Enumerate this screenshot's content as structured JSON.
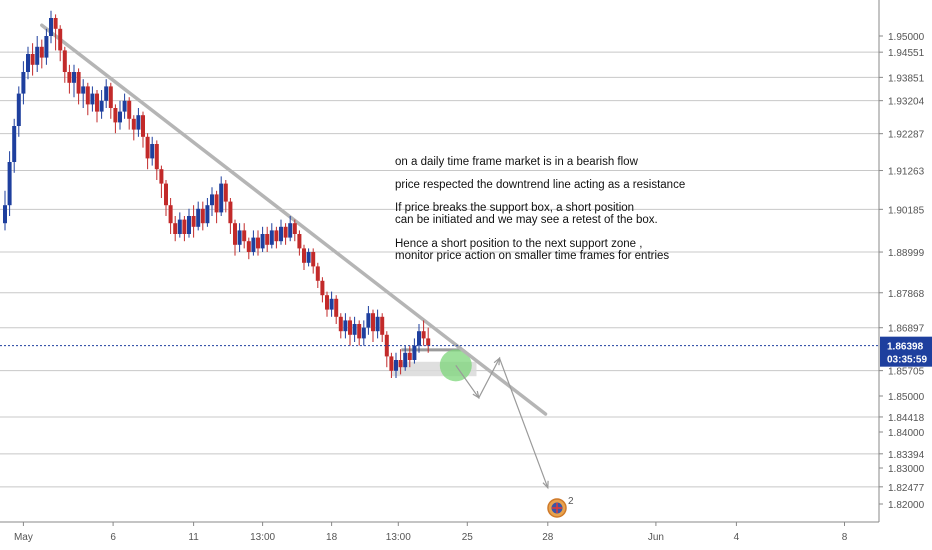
{
  "chart_data": {
    "type": "candlestick",
    "y_range": [
      1.815,
      1.96
    ],
    "x_range_days": [
      0,
      38
    ],
    "price_ticks": [
      "1.95000",
      "1.94551",
      "1.93851",
      "1.93204",
      "1.92287",
      "1.91263",
      "1.90185",
      "1.88999",
      "1.87868",
      "1.86897",
      "1.85705",
      "1.85000",
      "1.84418",
      "1.84000",
      "1.83394",
      "1.83000",
      "1.82477",
      "1.82000"
    ],
    "price_tick_values": [
      1.95,
      1.94551,
      1.93851,
      1.93204,
      1.92287,
      1.91263,
      1.90185,
      1.88999,
      1.87868,
      1.86897,
      1.85705,
      1.85,
      1.84418,
      1.84,
      1.83394,
      1.83,
      1.82477,
      1.82
    ],
    "level_lines": [
      1.94551,
      1.93851,
      1.93204,
      1.92287,
      1.91263,
      1.90185,
      1.88999,
      1.87868,
      1.86897,
      1.85705,
      1.84418,
      1.83394,
      1.82477
    ],
    "time_ticks": [
      {
        "label": "May",
        "day": 0.8
      },
      {
        "label": "6",
        "day": 4.7
      },
      {
        "label": "11",
        "day": 8.2
      },
      {
        "label": "13:00",
        "day": 11.2
      },
      {
        "label": "18",
        "day": 14.2
      },
      {
        "label": "13:00",
        "day": 17.1
      },
      {
        "label": "25",
        "day": 20.1
      },
      {
        "label": "28",
        "day": 23.6
      },
      {
        "label": "Jun",
        "day": 28.3
      },
      {
        "label": "4",
        "day": 31.8
      },
      {
        "label": "8",
        "day": 36.5
      }
    ],
    "current_price": {
      "label": "1.86398",
      "value": 1.86398,
      "countdown": "03:35:59"
    },
    "candles": [
      [
        0.0,
        1.898,
        1.903,
        1.907,
        1.896
      ],
      [
        0.2,
        1.903,
        1.915,
        1.918,
        1.9
      ],
      [
        0.4,
        1.915,
        1.925,
        1.927,
        1.912
      ],
      [
        0.6,
        1.925,
        1.934,
        1.936,
        1.922
      ],
      [
        0.8,
        1.934,
        1.94,
        1.943,
        1.931
      ],
      [
        1.0,
        1.94,
        1.945,
        1.947,
        1.938
      ],
      [
        1.2,
        1.945,
        1.942,
        1.948,
        1.939
      ],
      [
        1.4,
        1.942,
        1.947,
        1.95,
        1.94
      ],
      [
        1.6,
        1.947,
        1.944,
        1.949,
        1.941
      ],
      [
        1.8,
        1.944,
        1.95,
        1.952,
        1.942
      ],
      [
        2.0,
        1.95,
        1.955,
        1.957,
        1.948
      ],
      [
        2.2,
        1.955,
        1.952,
        1.956,
        1.946
      ],
      [
        2.4,
        1.952,
        1.946,
        1.953,
        1.943
      ],
      [
        2.6,
        1.946,
        1.94,
        1.947,
        1.937
      ],
      [
        2.8,
        1.94,
        1.937,
        1.942,
        1.934
      ],
      [
        3.0,
        1.937,
        1.94,
        1.942,
        1.933
      ],
      [
        3.2,
        1.94,
        1.934,
        1.941,
        1.931
      ],
      [
        3.4,
        1.934,
        1.936,
        1.938,
        1.93
      ],
      [
        3.6,
        1.936,
        1.931,
        1.937,
        1.928
      ],
      [
        3.8,
        1.931,
        1.934,
        1.936,
        1.929
      ],
      [
        4.0,
        1.934,
        1.929,
        1.935,
        1.926
      ],
      [
        4.2,
        1.929,
        1.932,
        1.935,
        1.927
      ],
      [
        4.4,
        1.932,
        1.936,
        1.938,
        1.93
      ],
      [
        4.6,
        1.936,
        1.93,
        1.937,
        1.927
      ],
      [
        4.8,
        1.93,
        1.926,
        1.931,
        1.923
      ],
      [
        5.0,
        1.926,
        1.929,
        1.932,
        1.924
      ],
      [
        5.2,
        1.929,
        1.932,
        1.934,
        1.927
      ],
      [
        5.4,
        1.932,
        1.927,
        1.933,
        1.924
      ],
      [
        5.6,
        1.927,
        1.924,
        1.928,
        1.921
      ],
      [
        5.8,
        1.924,
        1.928,
        1.93,
        1.922
      ],
      [
        6.0,
        1.928,
        1.922,
        1.929,
        1.919
      ],
      [
        6.2,
        1.922,
        1.916,
        1.923,
        1.913
      ],
      [
        6.4,
        1.916,
        1.92,
        1.922,
        1.914
      ],
      [
        6.6,
        1.92,
        1.913,
        1.921,
        1.91
      ],
      [
        6.8,
        1.913,
        1.909,
        1.914,
        1.905
      ],
      [
        7.0,
        1.909,
        1.903,
        1.91,
        1.9
      ],
      [
        7.2,
        1.903,
        1.898,
        1.905,
        1.895
      ],
      [
        7.4,
        1.898,
        1.895,
        1.9,
        1.893
      ],
      [
        7.6,
        1.895,
        1.899,
        1.901,
        1.894
      ],
      [
        7.8,
        1.899,
        1.895,
        1.9,
        1.893
      ],
      [
        8.0,
        1.895,
        1.9,
        1.902,
        1.894
      ],
      [
        8.2,
        1.9,
        1.897,
        1.903,
        1.894
      ],
      [
        8.4,
        1.897,
        1.902,
        1.904,
        1.896
      ],
      [
        8.6,
        1.902,
        1.898,
        1.904,
        1.896
      ],
      [
        8.8,
        1.898,
        1.903,
        1.905,
        1.897
      ],
      [
        9.0,
        1.903,
        1.906,
        1.908,
        1.9
      ],
      [
        9.2,
        1.906,
        1.901,
        1.907,
        1.898
      ],
      [
        9.4,
        1.901,
        1.909,
        1.911,
        1.9
      ],
      [
        9.6,
        1.909,
        1.904,
        1.91,
        1.901
      ],
      [
        9.8,
        1.904,
        1.898,
        1.905,
        1.895
      ],
      [
        10.0,
        1.898,
        1.892,
        1.899,
        1.889
      ],
      [
        10.2,
        1.892,
        1.896,
        1.898,
        1.89
      ],
      [
        10.4,
        1.896,
        1.893,
        1.898,
        1.891
      ],
      [
        10.6,
        1.893,
        1.89,
        1.894,
        1.888
      ],
      [
        10.8,
        1.89,
        1.894,
        1.896,
        1.889
      ],
      [
        11.0,
        1.894,
        1.891,
        1.896,
        1.889
      ],
      [
        11.2,
        1.891,
        1.895,
        1.897,
        1.89
      ],
      [
        11.4,
        1.895,
        1.892,
        1.897,
        1.89
      ],
      [
        11.6,
        1.892,
        1.896,
        1.898,
        1.891
      ],
      [
        11.8,
        1.896,
        1.893,
        1.897,
        1.891
      ],
      [
        12.0,
        1.893,
        1.897,
        1.899,
        1.892
      ],
      [
        12.2,
        1.897,
        1.894,
        1.898,
        1.892
      ],
      [
        12.4,
        1.894,
        1.898,
        1.9,
        1.893
      ],
      [
        12.6,
        1.898,
        1.895,
        1.899,
        1.893
      ],
      [
        12.8,
        1.895,
        1.891,
        1.896,
        1.889
      ],
      [
        13.0,
        1.891,
        1.887,
        1.892,
        1.885
      ],
      [
        13.2,
        1.887,
        1.89,
        1.891,
        1.886
      ],
      [
        13.4,
        1.89,
        1.886,
        1.891,
        1.884
      ],
      [
        13.6,
        1.886,
        1.882,
        1.887,
        1.88
      ],
      [
        13.8,
        1.882,
        1.878,
        1.883,
        1.876
      ],
      [
        14.0,
        1.878,
        1.874,
        1.879,
        1.872
      ],
      [
        14.2,
        1.874,
        1.877,
        1.879,
        1.872
      ],
      [
        14.4,
        1.877,
        1.872,
        1.878,
        1.87
      ],
      [
        14.6,
        1.872,
        1.868,
        1.873,
        1.866
      ],
      [
        14.8,
        1.868,
        1.871,
        1.873,
        1.866
      ],
      [
        15.0,
        1.871,
        1.867,
        1.872,
        1.864
      ],
      [
        15.2,
        1.867,
        1.87,
        1.872,
        1.865
      ],
      [
        15.4,
        1.87,
        1.866,
        1.871,
        1.864
      ],
      [
        15.6,
        1.866,
        1.869,
        1.871,
        1.864
      ],
      [
        15.8,
        1.869,
        1.873,
        1.875,
        1.867
      ],
      [
        16.0,
        1.873,
        1.868,
        1.874,
        1.865
      ],
      [
        16.2,
        1.868,
        1.872,
        1.874,
        1.866
      ],
      [
        16.4,
        1.872,
        1.867,
        1.873,
        1.865
      ],
      [
        16.6,
        1.867,
        1.861,
        1.868,
        1.858
      ],
      [
        16.8,
        1.861,
        1.857,
        1.862,
        1.855
      ],
      [
        17.0,
        1.857,
        1.86,
        1.862,
        1.855
      ],
      [
        17.2,
        1.86,
        1.858,
        1.863,
        1.856
      ],
      [
        17.4,
        1.858,
        1.862,
        1.864,
        1.857
      ],
      [
        17.6,
        1.862,
        1.86,
        1.864,
        1.858
      ],
      [
        17.8,
        1.86,
        1.864,
        1.866,
        1.859
      ],
      [
        18.0,
        1.864,
        1.868,
        1.87,
        1.862
      ],
      [
        18.2,
        1.868,
        1.866,
        1.871,
        1.864
      ],
      [
        18.4,
        1.866,
        1.864,
        1.869,
        1.862
      ]
    ],
    "trendline": {
      "from": [
        1.6,
        1.953
      ],
      "to": [
        23.5,
        1.845
      ]
    },
    "support_box": {
      "day_from": 16.8,
      "day_to": 20.5,
      "price_from": 1.8555,
      "price_to": 1.8595
    },
    "arrows": [
      [
        [
          19.6,
          1.8585
        ],
        [
          20.6,
          1.8495
        ],
        [
          21.5,
          1.8605
        ],
        [
          23.6,
          1.8245
        ]
      ]
    ],
    "annotation": [
      "on a daily time frame market is in a bearish flow",
      "price respected the downtrend line acting as a resistance",
      "If price breaks the support box, a short position",
      "can be initiated and we may see a retest of the  box.",
      "Hence a short position to the next support  zone ,",
      "monitor price action on smaller time frames for entries"
    ],
    "event_badge_count": "2",
    "colors": {
      "up": "#1e3f9e",
      "down": "#c22a2a",
      "trend": "#b5b5b5",
      "level": "#c8c8c8",
      "current": "#1e3f9e",
      "box": "#d9d9d9",
      "circle": "#7cd67a",
      "arrow": "#9a9a9a"
    }
  }
}
